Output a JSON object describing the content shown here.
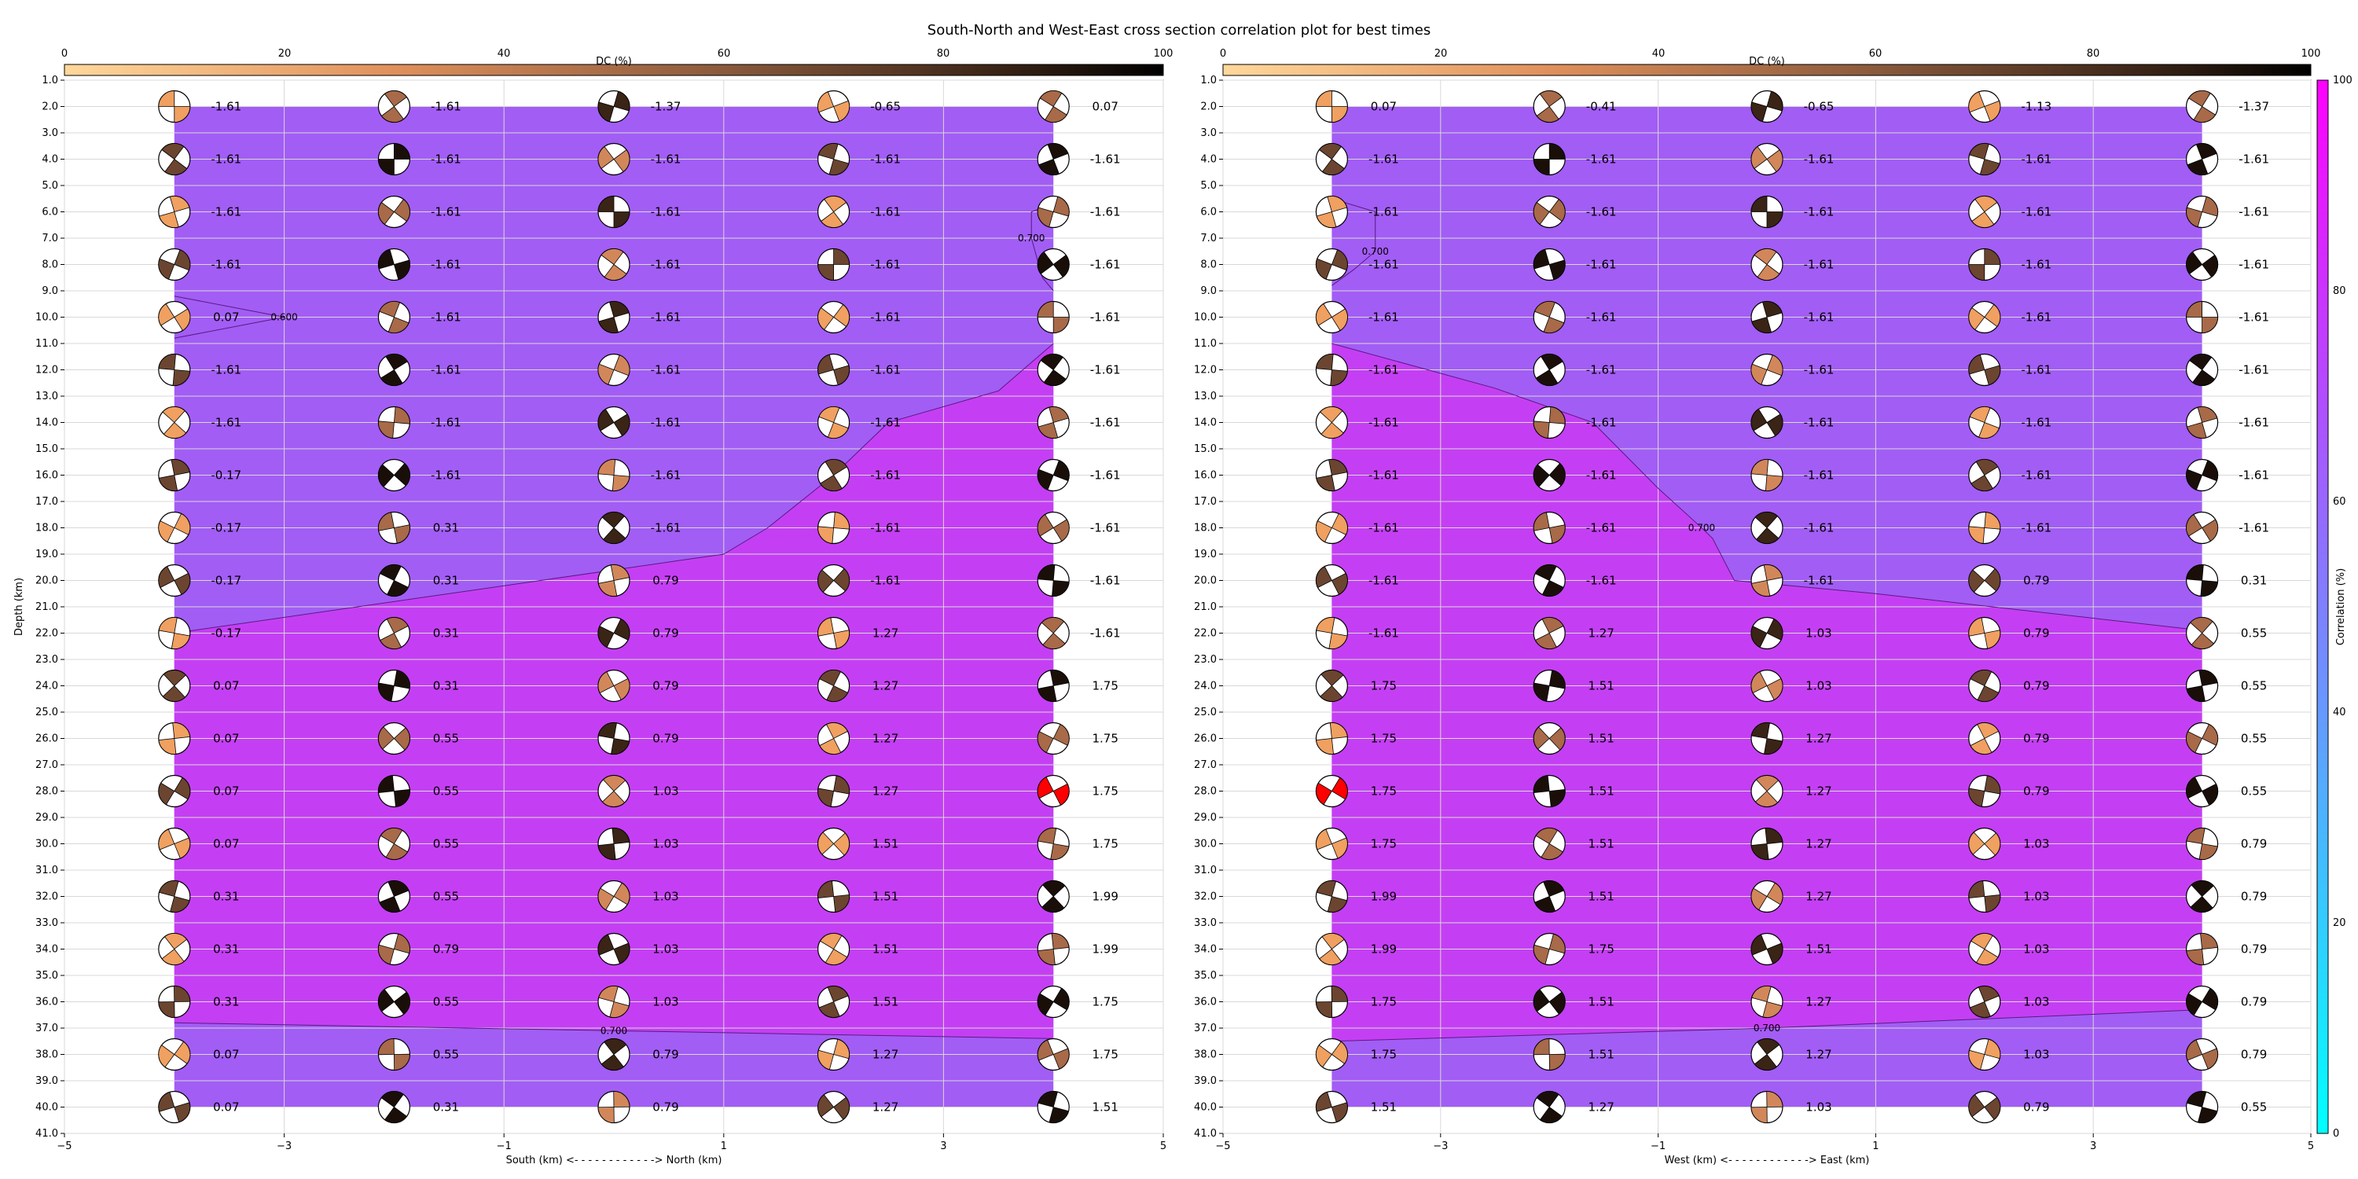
{
  "title": "South-North and West-East cross section correlation plot for best times",
  "dc_colorbar": {
    "label": "DC (%)",
    "ticks": [
      "0",
      "20",
      "40",
      "60",
      "80",
      "100"
    ],
    "range": [
      0,
      100
    ]
  },
  "correlation_colorbar": {
    "label": "Correlation (%)",
    "ticks": [
      "0",
      "20",
      "40",
      "60",
      "80",
      "100"
    ],
    "range": [
      0,
      100
    ]
  },
  "colors": {
    "low_correlation_fill": "#a25df5",
    "high_correlation_fill": "#c43ff3",
    "background_fill": "#9d62f5",
    "best_solution_fill": "#ff0000",
    "dc_low": "#f8c98a",
    "dc_mid": "#d2875a",
    "dc_high": "#000000"
  },
  "chart_data": [
    {
      "type": "scatter",
      "panel": "south-north",
      "xlabel": "South (km) <- - - - - - - - - - - -> North (km)",
      "ylabel": "Depth (km)",
      "xlim": [
        -5,
        5
      ],
      "ylim": [
        41,
        1
      ],
      "x_ticks": [
        "−5",
        "−3",
        "−1",
        "1",
        "3",
        "5"
      ],
      "y_ticks": [
        "1.0",
        "2.0",
        "3.0",
        "4.0",
        "5.0",
        "6.0",
        "7.0",
        "8.0",
        "9.0",
        "10.0",
        "11.0",
        "12.0",
        "13.0",
        "14.0",
        "15.0",
        "16.0",
        "17.0",
        "18.0",
        "19.0",
        "20.0",
        "21.0",
        "22.0",
        "23.0",
        "24.0",
        "25.0",
        "26.0",
        "27.0",
        "28.0",
        "29.0",
        "30.0",
        "31.0",
        "32.0",
        "33.0",
        "34.0",
        "35.0",
        "36.0",
        "37.0",
        "38.0",
        "39.0",
        "40.0",
        "41.0"
      ],
      "x_positions": [
        -4,
        -2,
        0,
        2,
        4
      ],
      "depths": [
        2,
        4,
        6,
        8,
        10,
        12,
        14,
        16,
        18,
        20,
        22,
        24,
        26,
        28,
        30,
        32,
        34,
        36,
        38,
        40
      ],
      "time_labels": [
        [
          "-1.61",
          "-1.61",
          "-1.37",
          "-0.65",
          "0.07"
        ],
        [
          "-1.61",
          "-1.61",
          "-1.61",
          "-1.61",
          "-1.61"
        ],
        [
          "-1.61",
          "-1.61",
          "-1.61",
          "-1.61",
          "-1.61"
        ],
        [
          "-1.61",
          "-1.61",
          "-1.61",
          "-1.61",
          "-1.61"
        ],
        [
          "0.07",
          "-1.61",
          "-1.61",
          "-1.61",
          "-1.61"
        ],
        [
          "-1.61",
          "-1.61",
          "-1.61",
          "-1.61",
          "-1.61"
        ],
        [
          "-1.61",
          "-1.61",
          "-1.61",
          "-1.61",
          "-1.61"
        ],
        [
          "-0.17",
          "-1.61",
          "-1.61",
          "-1.61",
          "-1.61"
        ],
        [
          "-0.17",
          "0.31",
          "-1.61",
          "-1.61",
          "-1.61"
        ],
        [
          "-0.17",
          "0.31",
          "0.79",
          "-1.61",
          "-1.61"
        ],
        [
          "-0.17",
          "0.31",
          "0.79",
          "1.27",
          "-1.61"
        ],
        [
          "0.07",
          "0.31",
          "0.79",
          "1.27",
          "1.75"
        ],
        [
          "0.07",
          "0.55",
          "0.79",
          "1.27",
          "1.75"
        ],
        [
          "0.07",
          "0.55",
          "1.03",
          "1.27",
          "1.75"
        ],
        [
          "0.07",
          "0.55",
          "1.03",
          "1.51",
          "1.75"
        ],
        [
          "0.31",
          "0.55",
          "1.03",
          "1.51",
          "1.99"
        ],
        [
          "0.31",
          "0.79",
          "1.03",
          "1.51",
          "1.99"
        ],
        [
          "0.31",
          "0.55",
          "1.03",
          "1.51",
          "1.75"
        ],
        [
          "0.07",
          "0.55",
          "0.79",
          "1.27",
          "1.75"
        ],
        [
          "0.07",
          "0.31",
          "0.79",
          "1.27",
          "1.51"
        ]
      ],
      "best_solution": {
        "x": 4,
        "depth": 28
      },
      "contours": [
        {
          "label": "0.700",
          "polyline": [
            [
              -4,
              22
            ],
            [
              1.0,
              19.0
            ],
            [
              1.4,
              18.0
            ],
            [
              2.0,
              16.0
            ],
            [
              2.5,
              14.0
            ],
            [
              3.5,
              12.8
            ],
            [
              4,
              11.0
            ]
          ]
        },
        {
          "label": "0.700",
          "polyline": [
            [
              -4,
              36.8
            ],
            [
              0,
              37.1
            ],
            [
              4,
              37.4
            ]
          ]
        },
        {
          "label": "0.600",
          "polyline": [
            [
              -4,
              9.2
            ],
            [
              -3.0,
              10.0
            ],
            [
              -4,
              10.8
            ]
          ]
        },
        {
          "label": "0.700",
          "polyline": [
            [
              4,
              5.7
            ],
            [
              3.8,
              6.0
            ],
            [
              3.8,
              7.0
            ],
            [
              3.9,
              8.5
            ],
            [
              4,
              9.0
            ]
          ]
        }
      ]
    },
    {
      "type": "scatter",
      "panel": "west-east",
      "xlabel": "West (km) <- - - - - - - - - - - -> East (km)",
      "ylabel": "",
      "xlim": [
        -5,
        5
      ],
      "ylim": [
        41,
        1
      ],
      "x_ticks": [
        "−5",
        "−3",
        "−1",
        "1",
        "3",
        "5"
      ],
      "y_ticks": [
        "1.0",
        "2.0",
        "3.0",
        "4.0",
        "5.0",
        "6.0",
        "7.0",
        "8.0",
        "9.0",
        "10.0",
        "11.0",
        "12.0",
        "13.0",
        "14.0",
        "15.0",
        "16.0",
        "17.0",
        "18.0",
        "19.0",
        "20.0",
        "21.0",
        "22.0",
        "23.0",
        "24.0",
        "25.0",
        "26.0",
        "27.0",
        "28.0",
        "29.0",
        "30.0",
        "31.0",
        "32.0",
        "33.0",
        "34.0",
        "35.0",
        "36.0",
        "37.0",
        "38.0",
        "39.0",
        "40.0",
        "41.0"
      ],
      "x_positions": [
        -4,
        -2,
        0,
        2,
        4
      ],
      "depths": [
        2,
        4,
        6,
        8,
        10,
        12,
        14,
        16,
        18,
        20,
        22,
        24,
        26,
        28,
        30,
        32,
        34,
        36,
        38,
        40
      ],
      "time_labels": [
        [
          "0.07",
          "-0.41",
          "-0.65",
          "-1.13",
          "-1.37"
        ],
        [
          "-1.61",
          "-1.61",
          "-1.61",
          "-1.61",
          "-1.61"
        ],
        [
          "-1.61",
          "-1.61",
          "-1.61",
          "-1.61",
          "-1.61"
        ],
        [
          "-1.61",
          "-1.61",
          "-1.61",
          "-1.61",
          "-1.61"
        ],
        [
          "-1.61",
          "-1.61",
          "-1.61",
          "-1.61",
          "-1.61"
        ],
        [
          "-1.61",
          "-1.61",
          "-1.61",
          "-1.61",
          "-1.61"
        ],
        [
          "-1.61",
          "-1.61",
          "-1.61",
          "-1.61",
          "-1.61"
        ],
        [
          "-1.61",
          "-1.61",
          "-1.61",
          "-1.61",
          "-1.61"
        ],
        [
          "-1.61",
          "-1.61",
          "-1.61",
          "-1.61",
          "-1.61"
        ],
        [
          "-1.61",
          "-1.61",
          "-1.61",
          "0.79",
          "0.31"
        ],
        [
          "-1.61",
          "1.27",
          "1.03",
          "0.79",
          "0.55"
        ],
        [
          "1.75",
          "1.51",
          "1.03",
          "0.79",
          "0.55"
        ],
        [
          "1.75",
          "1.51",
          "1.27",
          "0.79",
          "0.55"
        ],
        [
          "1.75",
          "1.51",
          "1.27",
          "0.79",
          "0.55"
        ],
        [
          "1.75",
          "1.51",
          "1.27",
          "1.03",
          "0.79"
        ],
        [
          "1.99",
          "1.51",
          "1.27",
          "1.03",
          "0.79"
        ],
        [
          "1.99",
          "1.75",
          "1.51",
          "1.03",
          "0.79"
        ],
        [
          "1.75",
          "1.51",
          "1.27",
          "1.03",
          "0.79"
        ],
        [
          "1.75",
          "1.51",
          "1.27",
          "1.03",
          "0.79"
        ],
        [
          "1.51",
          "1.27",
          "1.03",
          "0.79",
          "0.55"
        ]
      ],
      "best_solution": {
        "x": -4,
        "depth": 28
      },
      "contours": [
        {
          "label": "0.700",
          "polyline": [
            [
              -4,
              11.0
            ],
            [
              -2.5,
              12.7
            ],
            [
              -1.6,
              14.0
            ],
            [
              -1.0,
              16.5
            ],
            [
              -0.6,
              18.0
            ],
            [
              -0.5,
              18.4
            ],
            [
              -0.3,
              20.0
            ],
            [
              1,
              20.5
            ],
            [
              4,
              21.9
            ]
          ]
        },
        {
          "label": "0.700",
          "polyline": [
            [
              -4,
              37.5
            ],
            [
              0,
              37.0
            ],
            [
              4,
              36.3
            ]
          ]
        },
        {
          "label": "0.700",
          "polyline": [
            [
              -4,
              5.5
            ],
            [
              -3.6,
              6.0
            ],
            [
              -3.6,
              7.5
            ],
            [
              -3.8,
              8.2
            ],
            [
              -4,
              8.8
            ]
          ]
        }
      ]
    }
  ]
}
